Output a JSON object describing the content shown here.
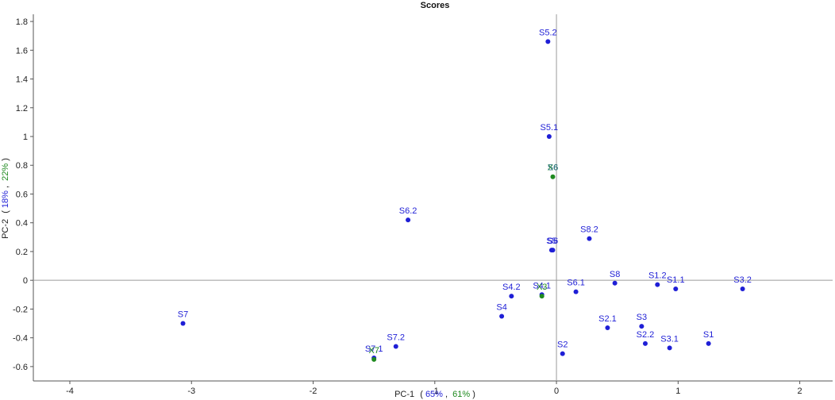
{
  "chart_data": {
    "type": "scatter",
    "title": "Scores",
    "xlabel": {
      "prefix": "PC-1",
      "open": "(",
      "first": "65%",
      "separator": ",",
      "second": "61%",
      "close": ")"
    },
    "ylabel": {
      "prefix": "PC-2",
      "open": "(",
      "first": "18%",
      "separator": ",",
      "second": "22%",
      "close": ")"
    },
    "xlim": [
      -4.3,
      2.27
    ],
    "ylim": [
      -0.7,
      1.85
    ],
    "x_ticks": [
      {
        "value": -4,
        "label": "-4"
      },
      {
        "value": -3,
        "label": "-3"
      },
      {
        "value": -2,
        "label": "-2"
      },
      {
        "value": -1,
        "label": "-1"
      },
      {
        "value": 0,
        "label": "0"
      },
      {
        "value": 1,
        "label": "1"
      },
      {
        "value": 2,
        "label": "2"
      }
    ],
    "y_ticks": [
      {
        "value": 1.8,
        "label": "1.8"
      },
      {
        "value": 1.6,
        "label": "1.6"
      },
      {
        "value": 1.4,
        "label": "1.4"
      },
      {
        "value": 1.2,
        "label": "1.2"
      },
      {
        "value": 1.0,
        "label": "1"
      },
      {
        "value": 0.8,
        "label": "0.8"
      },
      {
        "value": 0.6,
        "label": "0.6"
      },
      {
        "value": 0.4,
        "label": "0.4"
      },
      {
        "value": 0.2,
        "label": "0.2"
      },
      {
        "value": 0.0,
        "label": "0"
      },
      {
        "value": -0.2,
        "label": "-0.2"
      },
      {
        "value": -0.4,
        "label": "-0.4"
      },
      {
        "value": -0.6,
        "label": "-0.6"
      }
    ],
    "reference_lines": {
      "x": 0,
      "y": 0
    },
    "grid": false,
    "colors": {
      "first_series": "#1f1fd6",
      "second_series": "#1f8a1f",
      "overlap_label": "#2a6f8a",
      "axis": "#555555",
      "reference": "#9a9a9a",
      "text": "#222222"
    },
    "series": [
      {
        "role": "first",
        "points": [
          {
            "label": "S5.2",
            "x": -0.07,
            "y": 1.66
          },
          {
            "label": "S5.1",
            "x": -0.06,
            "y": 1.0
          },
          {
            "label": "S6.2",
            "x": -1.22,
            "y": 0.42
          },
          {
            "label": "S8.2",
            "x": 0.27,
            "y": 0.29
          },
          {
            "label": "S5",
            "x": -0.04,
            "y": 0.21
          },
          {
            "label": "S6",
            "x": -0.03,
            "y": 0.21
          },
          {
            "label": "S8",
            "x": 0.48,
            "y": -0.02
          },
          {
            "label": "S1.2",
            "x": 0.83,
            "y": -0.03
          },
          {
            "label": "S1.1",
            "x": 0.98,
            "y": -0.06
          },
          {
            "label": "S3.2",
            "x": 1.53,
            "y": -0.06
          },
          {
            "label": "S6.1",
            "x": 0.16,
            "y": -0.08
          },
          {
            "label": "S4.2",
            "x": -0.37,
            "y": -0.11
          },
          {
            "label": "S4.1",
            "x": -0.12,
            "y": -0.1
          },
          {
            "label": "S4",
            "x": -0.45,
            "y": -0.25
          },
          {
            "label": "S7",
            "x": -3.07,
            "y": -0.3
          },
          {
            "label": "S3",
            "x": 0.7,
            "y": -0.32
          },
          {
            "label": "S2.1",
            "x": 0.42,
            "y": -0.33
          },
          {
            "label": "S2.2",
            "x": 0.73,
            "y": -0.44
          },
          {
            "label": "S3.1",
            "x": 0.93,
            "y": -0.47
          },
          {
            "label": "S1",
            "x": 1.25,
            "y": -0.44
          },
          {
            "label": "S7.2",
            "x": -1.32,
            "y": -0.46
          },
          {
            "label": "S7.1",
            "x": -1.5,
            "y": -0.54
          },
          {
            "label": "S2",
            "x": 0.05,
            "y": -0.51
          }
        ]
      },
      {
        "role": "second",
        "points": [
          {
            "label": "X6",
            "x": -0.03,
            "y": 0.72
          },
          {
            "label": "X3",
            "x": -0.12,
            "y": -0.11
          },
          {
            "label": "X7",
            "x": -1.5,
            "y": -0.55
          }
        ]
      }
    ],
    "overlap_labels": [
      {
        "label": "S6",
        "x": -0.03,
        "y": 0.72
      }
    ]
  }
}
